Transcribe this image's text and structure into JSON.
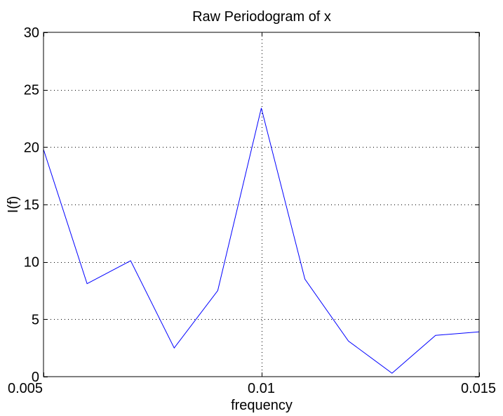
{
  "chart_data": {
    "type": "line",
    "title": "Raw Periodogram of x",
    "xlabel": "frequency",
    "ylabel": "I(f)",
    "xlim": [
      0.005,
      0.015
    ],
    "ylim": [
      0,
      30
    ],
    "grid": true,
    "x_ticks": [
      0.005,
      0.01,
      0.015
    ],
    "x_tick_labels": [
      "0.005",
      "0.01",
      "0.015"
    ],
    "y_ticks": [
      0,
      5,
      10,
      15,
      20,
      25,
      30
    ],
    "y_tick_labels": [
      "0",
      "5",
      "10",
      "15",
      "20",
      "25",
      "30"
    ],
    "series": [
      {
        "color": "#0000ff",
        "x": [
          0.005,
          0.006,
          0.007,
          0.008,
          0.009,
          0.01,
          0.011,
          0.012,
          0.013,
          0.014,
          0.015
        ],
        "y": [
          19.8,
          8.1,
          10.1,
          2.5,
          7.5,
          23.4,
          8.5,
          3.1,
          0.3,
          3.6,
          3.9
        ]
      }
    ]
  }
}
